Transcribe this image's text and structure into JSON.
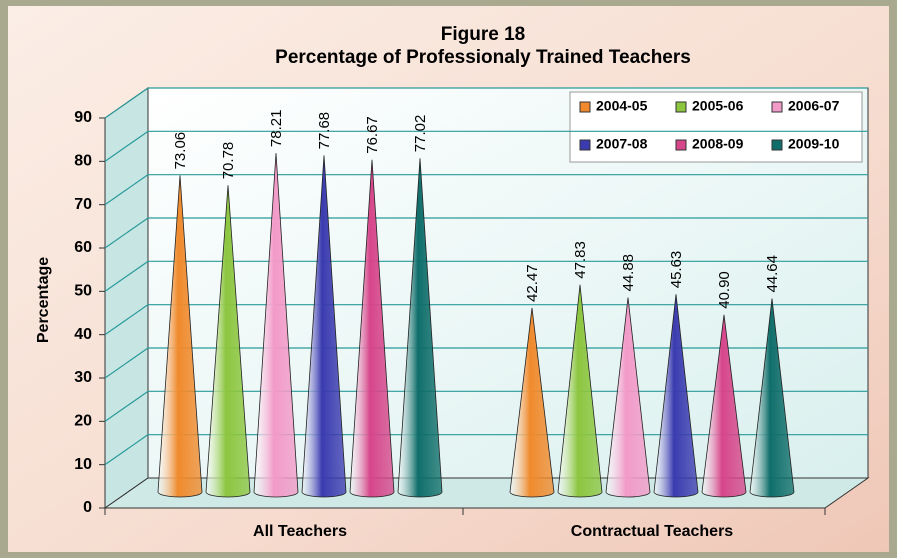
{
  "chart_data": {
    "type": "cone",
    "title": "Figure 18",
    "subtitle": "Percentage of Professionaly Trained Teachers",
    "y_label": "Percentage",
    "categories": [
      "All Teachers",
      "Contractual Teachers"
    ],
    "series": [
      {
        "name": "2004-05",
        "color": "#f08a2c",
        "values": [
          73.06,
          42.47
        ]
      },
      {
        "name": "2005-06",
        "color": "#8cc63f",
        "values": [
          70.78,
          47.83
        ]
      },
      {
        "name": "2006-07",
        "color": "#f29ac8",
        "values": [
          78.21,
          44.88
        ]
      },
      {
        "name": "2007-08",
        "color": "#3b3bb0",
        "values": [
          77.68,
          45.63
        ]
      },
      {
        "name": "2008-09",
        "color": "#d6468a",
        "values": [
          76.67,
          40.9
        ],
        "value_labels": [
          "76.67",
          "40.90"
        ]
      },
      {
        "name": "2009-10",
        "color": "#0f6e6a",
        "values": [
          77.02,
          44.64
        ]
      }
    ],
    "ylim": [
      0,
      90
    ],
    "yticks": [
      0,
      10,
      20,
      30,
      40,
      50,
      60,
      70,
      80,
      90
    ],
    "grid": true,
    "legend": "top-right"
  }
}
